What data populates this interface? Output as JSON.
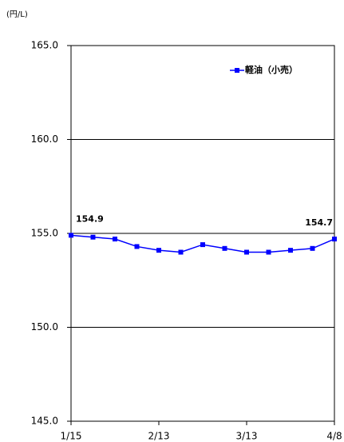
{
  "chart_data": {
    "type": "line",
    "y_label": "(円/L)",
    "categories": [
      "1/15",
      null,
      null,
      null,
      "2/13",
      null,
      null,
      null,
      "3/13",
      null,
      null,
      null,
      "4/8"
    ],
    "series": [
      {
        "name": "軽油（小売）",
        "color": "#0000ff",
        "values": [
          154.9,
          154.8,
          154.7,
          154.3,
          154.1,
          154.0,
          154.4,
          154.2,
          154.0,
          154.0,
          154.1,
          154.2,
          154.7
        ]
      }
    ],
    "ylim": [
      145,
      165
    ],
    "yticks": [
      {
        "value": 145,
        "label": "145.0"
      },
      {
        "value": 150,
        "label": "150.0"
      },
      {
        "value": 155,
        "label": "155.0"
      },
      {
        "value": 160,
        "label": "160.0"
      },
      {
        "value": 165,
        "label": "165.0"
      }
    ],
    "grid": true
  }
}
